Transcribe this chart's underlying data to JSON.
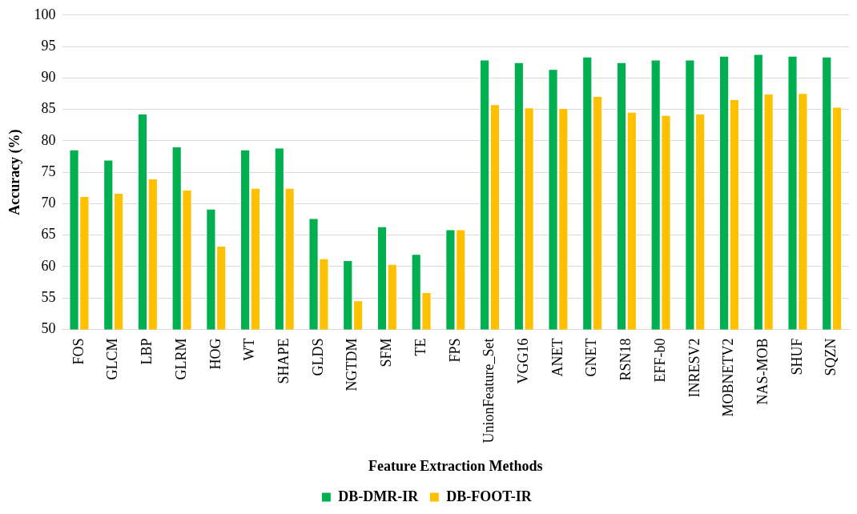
{
  "chart_data": {
    "type": "bar",
    "xlabel": "Feature Extraction Methods",
    "ylabel": "Accuracy (%)",
    "categories": [
      "FOS",
      "GLCM",
      "LBP",
      "GLRM",
      "HOG",
      "WT",
      "SHAPE",
      "GLDS",
      "NGTDM",
      "SFM",
      "TE",
      "FPS",
      "UnionFeature_Set",
      "VGG16",
      "ANET",
      "GNET",
      "RSN18",
      "EFF-b0",
      "INRESV2",
      "MOBNETV2",
      "NAS-MOB",
      "SHUF",
      "SQZN"
    ],
    "series": [
      {
        "name": "DB-DMR-IR",
        "color": "#00b050",
        "values": [
          78.6,
          77.0,
          84.3,
          79.1,
          69.2,
          78.6,
          78.9,
          67.7,
          61.0,
          66.4,
          62.0,
          65.9,
          92.9,
          92.5,
          91.4,
          93.4,
          92.5,
          92.9,
          92.9,
          93.5,
          93.8,
          93.5,
          93.4
        ]
      },
      {
        "name": "DB-FOOT-IR",
        "color": "#ffc000",
        "values": [
          71.2,
          71.7,
          74.0,
          72.2,
          63.3,
          72.5,
          72.5,
          61.3,
          54.6,
          60.4,
          55.9,
          65.9,
          85.8,
          85.3,
          85.2,
          87.1,
          84.6,
          84.1,
          84.3,
          86.6,
          87.5,
          87.6,
          85.4
        ]
      }
    ],
    "ylim": [
      50,
      100
    ],
    "yticks": [
      50,
      55,
      60,
      65,
      70,
      75,
      80,
      85,
      90,
      95,
      100
    ],
    "grid": "y",
    "legend": "bottom"
  }
}
